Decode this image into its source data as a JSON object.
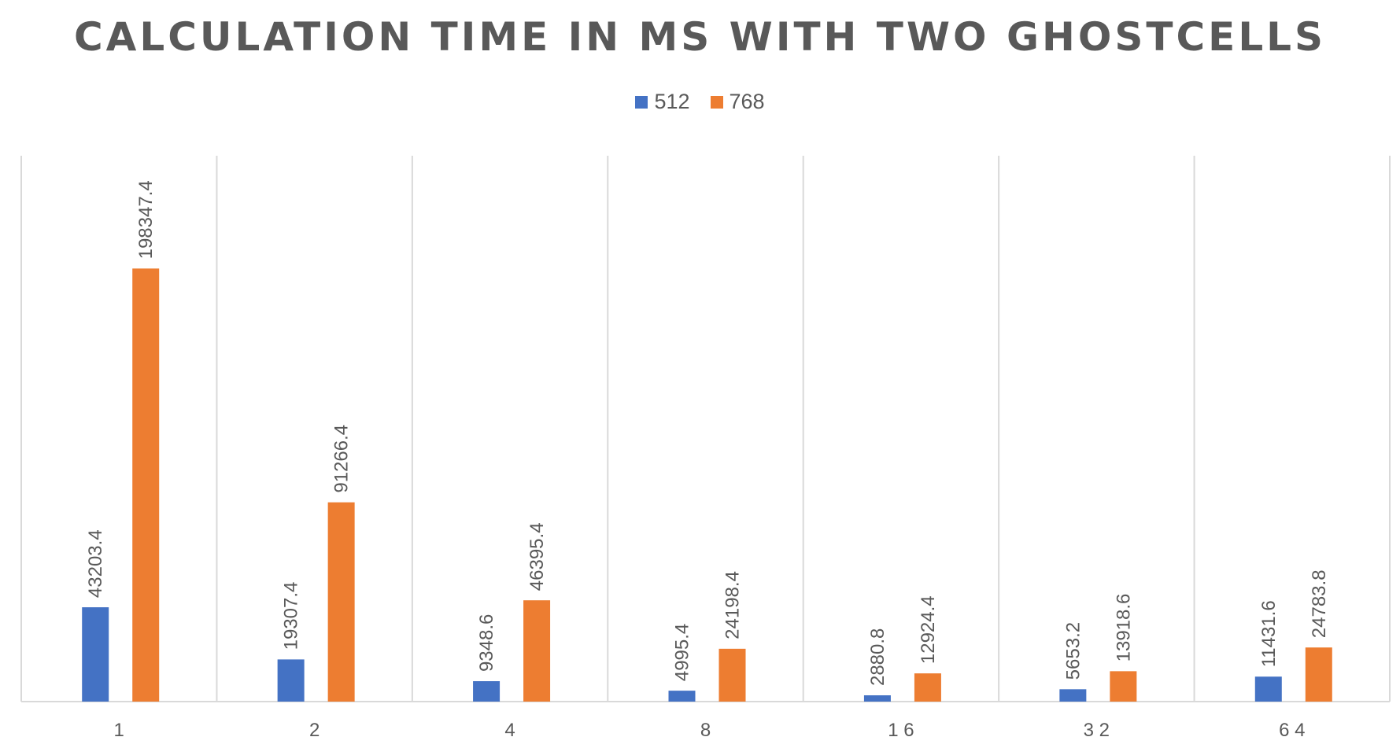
{
  "chart_data": {
    "type": "bar",
    "title": "CALCULATION TIME IN MS WITH TWO GHOSTCELLS",
    "xlabel": "",
    "ylabel": "",
    "categories": [
      "1",
      "2",
      "4",
      "8",
      "16",
      "32",
      "64"
    ],
    "category_display": [
      "1",
      "2",
      "4",
      "8",
      "1 6",
      "3 2",
      "6 4"
    ],
    "series": [
      {
        "name": "512",
        "color": "#4472C4",
        "values": [
          43203.4,
          19307.4,
          9348.6,
          4995.4,
          2880.8,
          5653.2,
          11431.6
        ]
      },
      {
        "name": "768",
        "color": "#ED7D31",
        "values": [
          198347.4,
          91266.4,
          46395.4,
          24198.4,
          12924.4,
          13918.6,
          24783.8
        ]
      }
    ],
    "ylim": [
      0,
      250000
    ],
    "grid": "vertical category separators",
    "legend_position": "top-center",
    "data_labels": "rotated above bars"
  }
}
